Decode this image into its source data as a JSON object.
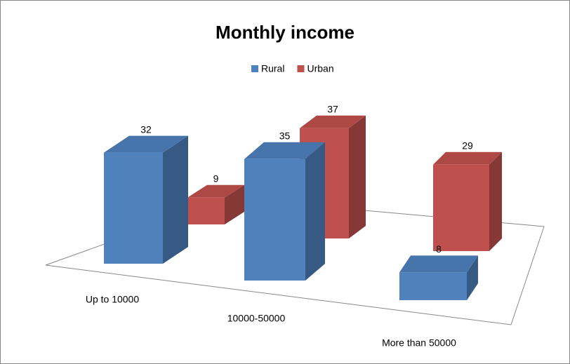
{
  "chart_data": {
    "type": "bar3d",
    "title": "Monthly income",
    "categories": [
      "Up to 10000",
      "10000-50000",
      "More than 50000"
    ],
    "series": [
      {
        "name": "Rural",
        "color": "#4f81bd",
        "values": [
          32,
          35,
          8
        ]
      },
      {
        "name": "Urban",
        "color": "#c0504d",
        "values": [
          9,
          37,
          29
        ]
      }
    ],
    "legend": "top"
  }
}
